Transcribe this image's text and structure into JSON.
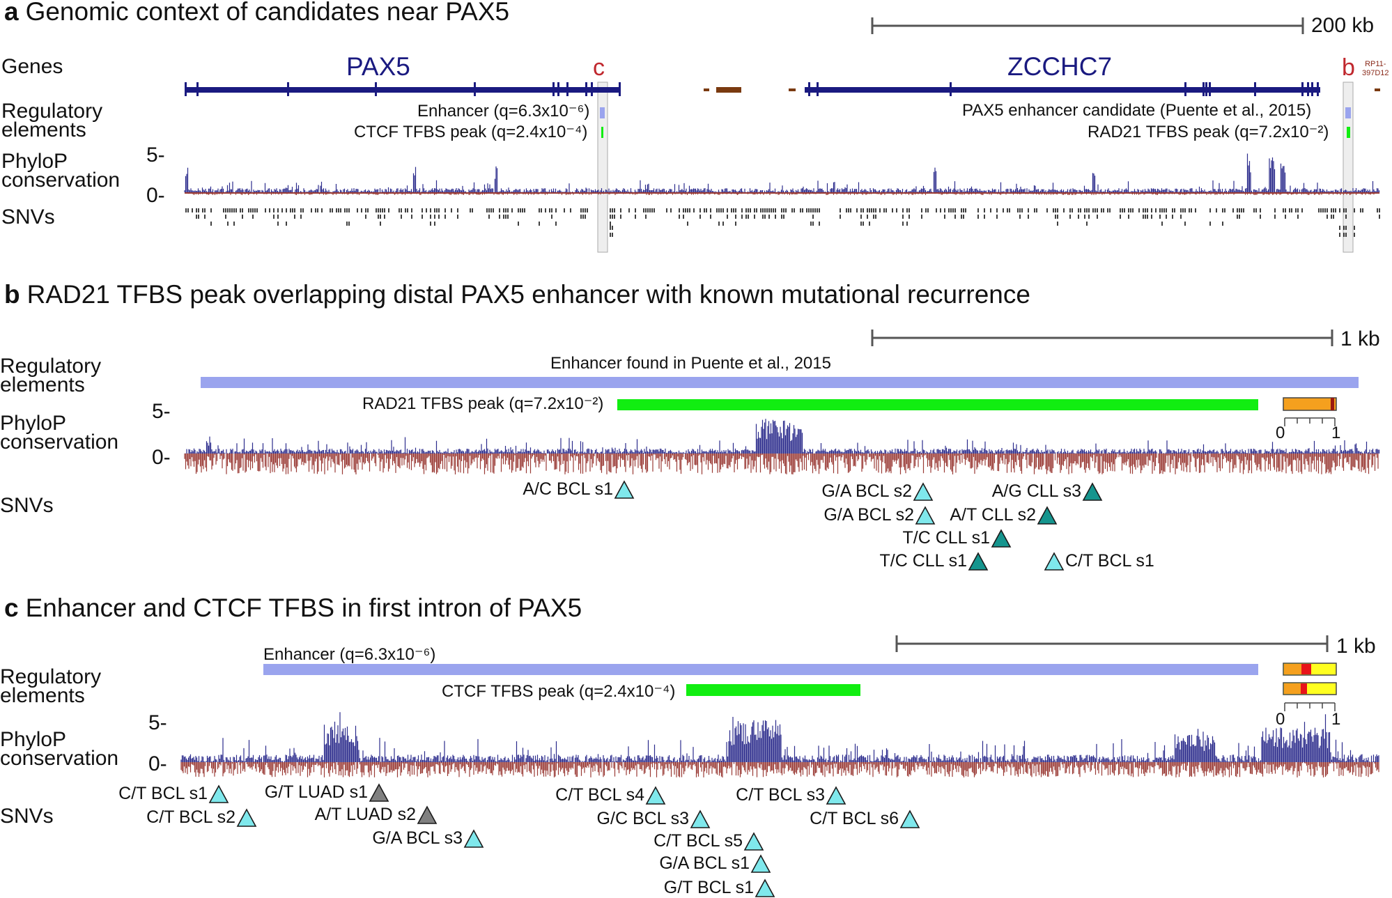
{
  "panel_a": {
    "letter": "a",
    "title": "Genomic context of candidates near PAX5",
    "scale_label": "200 kb",
    "track_labels": {
      "genes": "Genes",
      "regulatory": "Regulatory\nelements",
      "phylop": "PhyloP\nconservation",
      "snvs": "SNVs"
    },
    "gene_pax5": "PAX5",
    "gene_zcchc7": "ZCCHC7",
    "gene_rp11": "RP11-\n397D12",
    "marker_c": "c",
    "marker_b": "b",
    "note_enhancer": "Enhancer (q=6.3x10⁻⁶)",
    "note_ctcf": "CTCF TFBS peak (q=2.4x10⁻⁴)",
    "note_pax5_candidate": "PAX5 enhancer candidate (Puente et al., 2015)",
    "note_rad21": "RAD21 TFBS peak (q=7.2x10⁻²)",
    "y_tick_5": "5-",
    "y_tick_0": "0-"
  },
  "panel_b": {
    "letter": "b",
    "title": "RAD21 TFBS peak overlapping distal PAX5 enhancer with known mutational recurrence",
    "scale_label": "1 kb",
    "track_labels": {
      "regulatory": "Regulatory\nelements",
      "phylop": "PhyloP\nconservation",
      "snvs": "SNVs"
    },
    "enhancer_label": "Enhancer found in Puente et al., 2015",
    "rad21_label": "RAD21 TFBS peak (q=7.2x10⁻²)",
    "y_tick_5": "5-",
    "y_tick_0": "0-",
    "colorbar_min": "0",
    "colorbar_max": "1",
    "snvs": [
      {
        "label": "A/C BCL s1",
        "color": "#7fe8ec",
        "side": "right"
      },
      {
        "label": "G/A BCL s2",
        "color": "#7fe8ec",
        "side": "right"
      },
      {
        "label": "A/G CLL s3",
        "color": "#15958e",
        "side": "right"
      },
      {
        "label": "G/A BCL s2",
        "color": "#7fe8ec",
        "side": "right"
      },
      {
        "label": "A/T CLL s2",
        "color": "#15958e",
        "side": "right"
      },
      {
        "label": "T/C CLL s1",
        "color": "#15958e",
        "side": "right"
      },
      {
        "label": "T/C CLL s1",
        "color": "#15958e",
        "side": "right"
      },
      {
        "label": "C/T BCL s1",
        "color": "#7fe8ec",
        "side": "left"
      }
    ]
  },
  "panel_c": {
    "letter": "c",
    "title": "Enhancer and CTCF TFBS in first intron of PAX5",
    "scale_label": "1 kb",
    "track_labels": {
      "regulatory": "Regulatory\nelements",
      "phylop": "PhyloP\nconservation",
      "snvs": "SNVs"
    },
    "enhancer_label": "Enhancer (q=6.3x10⁻⁶)",
    "ctcf_label": "CTCF TFBS peak (q=2.4x10⁻⁴)",
    "y_tick_5": "5-",
    "y_tick_0": "0-",
    "colorbar_min": "0",
    "colorbar_max": "1",
    "snvs": [
      {
        "label": "C/T BCL s1",
        "color": "#7fe8ec"
      },
      {
        "label": "G/T LUAD s1",
        "color": "#808080"
      },
      {
        "label": "C/T BCL s2",
        "color": "#7fe8ec"
      },
      {
        "label": "A/T LUAD s2",
        "color": "#808080"
      },
      {
        "label": "G/A BCL s3",
        "color": "#7fe8ec"
      },
      {
        "label": "C/T BCL s4",
        "color": "#7fe8ec"
      },
      {
        "label": "G/C BCL s3",
        "color": "#7fe8ec"
      },
      {
        "label": "C/T BCL s5",
        "color": "#7fe8ec"
      },
      {
        "label": "G/A BCL s1",
        "color": "#7fe8ec"
      },
      {
        "label": "G/T BCL s1",
        "color": "#7fe8ec"
      },
      {
        "label": "C/T BCL s3",
        "color": "#7fe8ec"
      },
      {
        "label": "C/T BCL s6",
        "color": "#7fe8ec"
      }
    ]
  },
  "colors": {
    "gene": "#1a1a80",
    "enhancer": "#9aa4ee",
    "tfbs": "#11ee11",
    "phylop_pos": "#2b2b8c",
    "phylop_neg": "#9a3a35",
    "marker": "#c0282e"
  }
}
